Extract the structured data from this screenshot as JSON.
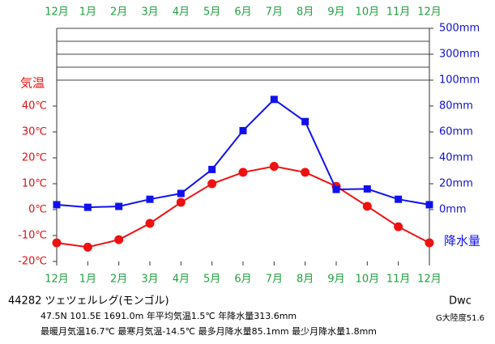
{
  "chart_data": {
    "type": "line",
    "categories": [
      "12月",
      "1月",
      "2月",
      "3月",
      "4月",
      "5月",
      "6月",
      "7月",
      "8月",
      "9月",
      "10月",
      "11月",
      "12月"
    ],
    "series": [
      {
        "name": "気温",
        "color": "#ee1111",
        "values": [
          -12.8,
          -14.5,
          -11.6,
          -5.3,
          2.8,
          10,
          14.4,
          16.7,
          14.4,
          9,
          1.3,
          -6.6,
          -12.8
        ]
      },
      {
        "name": "降水量",
        "color": "#1111ee",
        "axis": "y2",
        "values": [
          3.8,
          1.8,
          2.5,
          8,
          12.5,
          31,
          61,
          85.1,
          68,
          15.6,
          16,
          8,
          3.8
        ]
      }
    ],
    "ylim": [
      -20,
      70
    ],
    "yticks": [
      {
        "value": -20,
        "label": "-20℃"
      },
      {
        "value": -10,
        "label": "-10℃"
      },
      {
        "value": 0,
        "label": "0℃"
      },
      {
        "value": 10,
        "label": "10℃"
      },
      {
        "value": 20,
        "label": "20℃"
      },
      {
        "value": 30,
        "label": "30℃"
      },
      {
        "value": 40,
        "label": "40℃"
      }
    ],
    "y2lim": [
      -40,
      500
    ],
    "y2ticks": [
      {
        "value": 0,
        "label": "0mm"
      },
      {
        "value": 20,
        "label": "20mm"
      },
      {
        "value": 40,
        "label": "40mm"
      },
      {
        "value": 60,
        "label": "60mm"
      },
      {
        "value": 80,
        "label": "80mm"
      },
      {
        "value": 100,
        "label": "100mm"
      },
      {
        "value": 300,
        "label": "300mm"
      },
      {
        "value": 500,
        "label": "500mm"
      }
    ],
    "station": "44282 ツェツェルレグ(モンゴル)",
    "info1": "47.5N  101.5E  1691.0m  年平均気温1.5℃  年降水量313.6mm",
    "info2": "最暖月気温16.7℃ 最寒月気温-14.5℃ 最多月降水量85.1mm 最少月降水量1.8mm",
    "climate": "Dwc",
    "continentality": "G大陸度51.6"
  }
}
